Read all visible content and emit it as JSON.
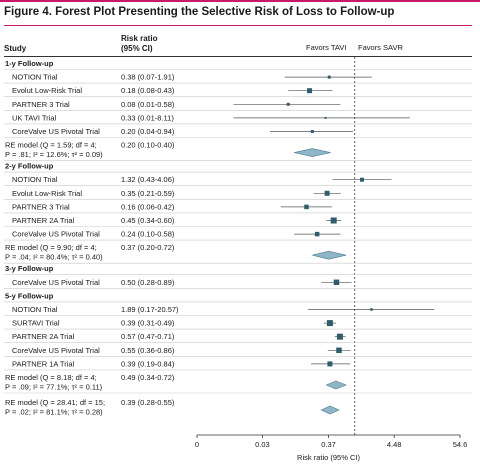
{
  "figure_title": "Figure 4. Forest Plot Presenting the Selective Risk of Loss to Follow-up",
  "header": {
    "study": "Study",
    "risk_ratio_line1": "Risk ratio",
    "risk_ratio_line2": "(95% CI)",
    "favors_left": "Favors TAVI",
    "favors_right": "Favors SAVR"
  },
  "colors": {
    "accent": "#c8196b",
    "marker": "#2f5d6e",
    "diamond": "#8eb6c8",
    "diamond_stroke": "#4e7b8e"
  },
  "chart_data": {
    "type": "forest",
    "xlabel": "Risk ratio (95% CI)",
    "x_scale": "log",
    "x_ticks": [
      "0",
      "0.03",
      "0.37",
      "4.48",
      "54.6"
    ],
    "x_tick_values": [
      0.0025,
      0.03,
      0.37,
      4.48,
      54.6
    ],
    "reference_value": 1,
    "sections": [
      {
        "title": "1-y Follow-up",
        "studies": [
          {
            "name": "NOTION Trial",
            "ci_text": "0.38 (0.07-1.91)",
            "rr": 0.38,
            "lo": 0.07,
            "hi": 1.91,
            "weight": 3
          },
          {
            "name": "Evolut Low-Risk Trial",
            "ci_text": "0.18 (0.08-0.43)",
            "rr": 0.18,
            "lo": 0.08,
            "hi": 0.43,
            "weight": 5
          },
          {
            "name": "PARTNER 3 Trial",
            "ci_text": "0.08 (0.01-0.58)",
            "rr": 0.08,
            "lo": 0.01,
            "hi": 0.58,
            "weight": 3
          },
          {
            "name": "UK TAVI Trial",
            "ci_text": "0.33 (0.01-8.11)",
            "rr": 0.33,
            "lo": 0.01,
            "hi": 8.11,
            "weight": 2
          },
          {
            "name": "CoreValve US Pivotal Trial",
            "ci_text": "0.20 (0.04-0.94)",
            "rr": 0.2,
            "lo": 0.04,
            "hi": 0.94,
            "weight": 3
          }
        ],
        "summary": {
          "line1": "RE model (Q = 1.59; df = 4;",
          "line2": "P = .81; I² = 12.6%; τ² = 0.09)",
          "ci_text": "0.20 (0.10-0.40)",
          "rr": 0.2,
          "lo": 0.1,
          "hi": 0.4
        }
      },
      {
        "title": "2-y Follow-up",
        "studies": [
          {
            "name": "NOTION Trial",
            "ci_text": "1.32 (0.43-4.06)",
            "rr": 1.32,
            "lo": 0.43,
            "hi": 4.06,
            "weight": 4
          },
          {
            "name": "Evolut Low-Risk Trial",
            "ci_text": "0.35 (0.21-0.59)",
            "rr": 0.35,
            "lo": 0.21,
            "hi": 0.59,
            "weight": 5
          },
          {
            "name": "PARTNER 3 Trial",
            "ci_text": "0.16 (0.06-0.42)",
            "rr": 0.16,
            "lo": 0.06,
            "hi": 0.42,
            "weight": 4.5
          },
          {
            "name": "PARTNER 2A Trial",
            "ci_text": "0.45 (0.34-0.60)",
            "rr": 0.45,
            "lo": 0.34,
            "hi": 0.6,
            "weight": 6
          },
          {
            "name": "CoreValve US Pivotal Trial",
            "ci_text": "0.24 (0.10-0.58)",
            "rr": 0.24,
            "lo": 0.1,
            "hi": 0.58,
            "weight": 4.5
          }
        ],
        "summary": {
          "line1": "RE model (Q = 9.90; df = 4;",
          "line2": "P = .04; I² = 80.4%; τ² = 0.40)",
          "ci_text": "0.37 (0.20-0.72)",
          "rr": 0.37,
          "lo": 0.2,
          "hi": 0.72
        }
      },
      {
        "title": "3-y Follow-up",
        "studies": [
          {
            "name": "CoreValve US Pivotal Trial",
            "ci_text": "0.50 (0.28-0.89)",
            "rr": 0.5,
            "lo": 0.28,
            "hi": 0.89,
            "weight": 5.5
          }
        ],
        "summary": null
      },
      {
        "title": "5-y Follow-up",
        "studies": [
          {
            "name": "NOTION Trial",
            "ci_text": "1.89 (0.17-20.57)",
            "rr": 1.89,
            "lo": 0.17,
            "hi": 20.57,
            "weight": 2.5
          },
          {
            "name": "SURTAVI Trial",
            "ci_text": "0.39 (0.31-0.49)",
            "rr": 0.39,
            "lo": 0.31,
            "hi": 0.49,
            "weight": 6
          },
          {
            "name": "PARTNER 2A Trial",
            "ci_text": "0.57 (0.47-0.71)",
            "rr": 0.57,
            "lo": 0.47,
            "hi": 0.71,
            "weight": 6
          },
          {
            "name": "CoreValve US Pivotal Trial",
            "ci_text": "0.55 (0.36-0.86)",
            "rr": 0.55,
            "lo": 0.36,
            "hi": 0.86,
            "weight": 5.5
          },
          {
            "name": "PARTNER 1A Trial",
            "ci_text": "0.39 (0.19-0.84)",
            "rr": 0.39,
            "lo": 0.19,
            "hi": 0.84,
            "weight": 5
          }
        ],
        "summary": {
          "line1": "RE model (Q = 8.18; df = 4;",
          "line2": "P = .09; I² = 77.1%; τ² = 0.11)",
          "ci_text": "0.49 (0.34-0.72)",
          "rr": 0.49,
          "lo": 0.34,
          "hi": 0.72
        }
      }
    ],
    "overall": {
      "line1": "RE model (Q = 28.41; df = 15;",
      "line2": "P = .02; I² = 81.1%; τ² = 0.28)",
      "ci_text": "0.39 (0.28-0.55)",
      "rr": 0.39,
      "lo": 0.28,
      "hi": 0.55
    }
  }
}
